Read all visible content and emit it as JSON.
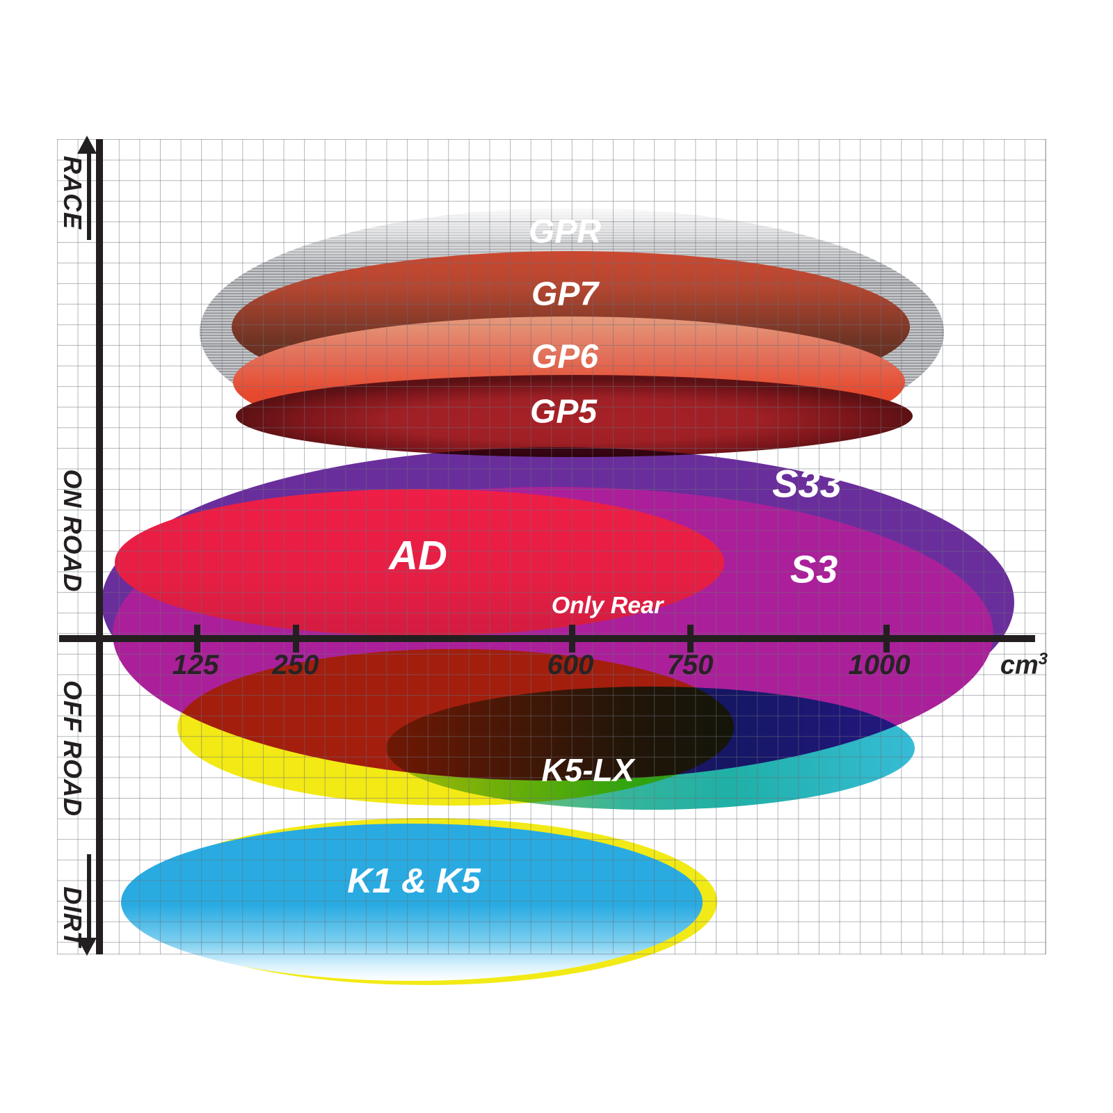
{
  "axes": {
    "x_tick_labels": [
      "125",
      "250",
      "600",
      "750",
      "1000"
    ],
    "x_unit_base": "cm",
    "x_unit_sup": "3",
    "y_labels": [
      "RACE",
      "ON ROAD",
      "OFF ROAD",
      "DIRT"
    ],
    "axis_color": "#231f20",
    "grid_color": "#9aa0a8"
  },
  "chart_data": {
    "type": "area",
    "title": "",
    "xlabel": "cm³",
    "ylabel": "RACE / ON ROAD / OFF ROAD / DIRT",
    "x_ticks": [
      125,
      250,
      600,
      750,
      1000
    ],
    "x_axis_nonlinear": true,
    "y_bands": [
      "RACE",
      "ON ROAD",
      "OFF ROAD",
      "DIRT"
    ],
    "grid": true,
    "legend": "labels drawn inside each region",
    "series": [
      {
        "name": "GPR",
        "band": "RACE",
        "cc_range": [
          125,
          1075
        ],
        "color": "#a9abb0",
        "style": "gray-striped ellipse"
      },
      {
        "name": "GP7",
        "band": "RACE",
        "cc_range": [
          170,
          1030
        ],
        "color": "#6e3223",
        "style": "red-to-brown ellipse"
      },
      {
        "name": "GP6",
        "band": "RACE",
        "cc_range": [
          170,
          1025
        ],
        "color": "#e74a2e",
        "style": "salmon-to-red ellipse"
      },
      {
        "name": "GP5",
        "band": "RACE",
        "cc_range": [
          175,
          1030
        ],
        "color": "#9e2025",
        "style": "dark-red ellipse"
      },
      {
        "name": "S33",
        "band": "ON ROAD",
        "cc_range": [
          50,
          1160
        ],
        "color": "#6a2e9c",
        "style": "purple ellipse"
      },
      {
        "name": "S3",
        "band": "ON ROAD",
        "cc_range": [
          60,
          1135
        ],
        "color": "#ab209a",
        "style": "magenta ellipse"
      },
      {
        "name": "AD",
        "band": "ON ROAD",
        "cc_range": [
          60,
          790
        ],
        "color": "#e71e44",
        "note": "Only Rear",
        "style": "red ellipse"
      },
      {
        "name": "K5-LX",
        "band": "OFF ROAD",
        "cc_range": [
          365,
          1035
        ],
        "color": "#1fb0a6",
        "style": "green-to-cyan ellipse"
      },
      {
        "name": "",
        "band": "OFF ROAD",
        "cc_range": [
          100,
          805
        ],
        "color": "#f3e915",
        "style": "unlabeled yellow ellipse"
      },
      {
        "name": "K1 & K5",
        "band": "DIRT",
        "cc_range": [
          30,
          765
        ],
        "color": "#29abe2",
        "style": "sky-blue ellipse, yellow rim, fades to white"
      }
    ]
  }
}
